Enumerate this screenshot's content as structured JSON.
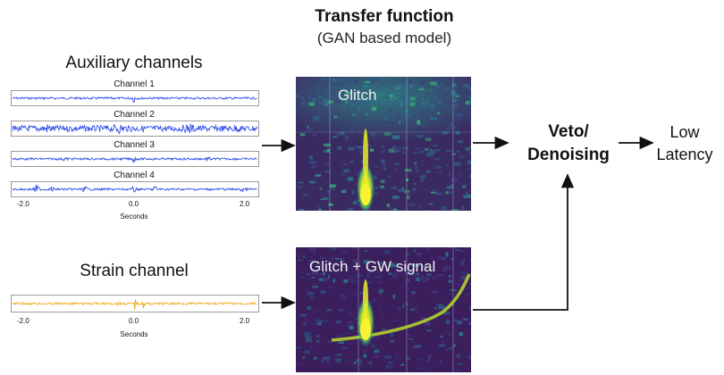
{
  "header": {
    "title": "Transfer function",
    "subtitle": "(GAN based model)"
  },
  "auxiliary": {
    "heading": "Auxiliary channels",
    "channels": [
      {
        "label": "Channel 1"
      },
      {
        "label": "Channel 2"
      },
      {
        "label": "Channel 3"
      },
      {
        "label": "Channel 4"
      }
    ],
    "ticks": [
      "-2.0",
      "0.0",
      "2.0"
    ],
    "axis_label": "Seconds",
    "trace_color": "#1f3fe6"
  },
  "strain": {
    "heading": "Strain channel",
    "ticks": [
      "-2.0",
      "0.0",
      "2.0"
    ],
    "axis_label": "Seconds",
    "trace_color": "#f2a20c"
  },
  "spectrograms": {
    "top_label": "Glitch",
    "bottom_label": "Glitch + GW signal",
    "background_color": "#3b1f5c",
    "glitch_color": "#f4e21a"
  },
  "output": {
    "veto_line1": "Veto/",
    "veto_line2": "Denoising",
    "low_line1": "Low",
    "low_line2": "Latency"
  }
}
